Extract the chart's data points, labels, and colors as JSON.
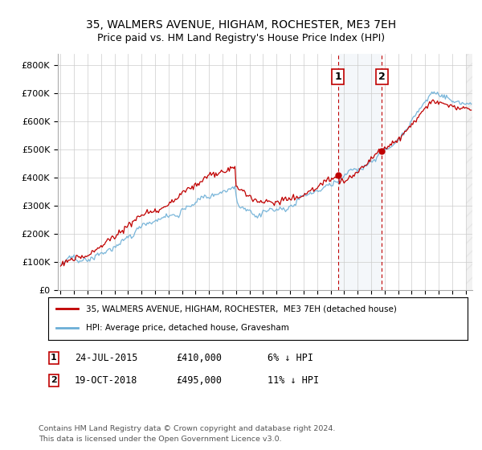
{
  "title": "35, WALMERS AVENUE, HIGHAM, ROCHESTER, ME3 7EH",
  "subtitle": "Price paid vs. HM Land Registry's House Price Index (HPI)",
  "ylim": [
    0,
    840000
  ],
  "yticks": [
    0,
    100000,
    200000,
    300000,
    400000,
    500000,
    600000,
    700000,
    800000
  ],
  "ytick_labels": [
    "£0",
    "£100K",
    "£200K",
    "£300K",
    "£400K",
    "£500K",
    "£600K",
    "£700K",
    "£800K"
  ],
  "sale1_date": 2015.56,
  "sale1_price": 410000,
  "sale2_date": 2018.8,
  "sale2_price": 495000,
  "hpi_color": "#6baed6",
  "price_color": "#c00000",
  "vline_color": "#c00000",
  "shade_color": "#dce6f1",
  "legend1": "35, WALMERS AVENUE, HIGHAM, ROCHESTER,  ME3 7EH (detached house)",
  "legend2": "HPI: Average price, detached house, Gravesham",
  "footer": "Contains HM Land Registry data © Crown copyright and database right 2024.\nThis data is licensed under the Open Government Licence v3.0.",
  "background_color": "#ffffff",
  "grid_color": "#cccccc",
  "xlim_left": 1994.8,
  "xlim_right": 2025.5
}
